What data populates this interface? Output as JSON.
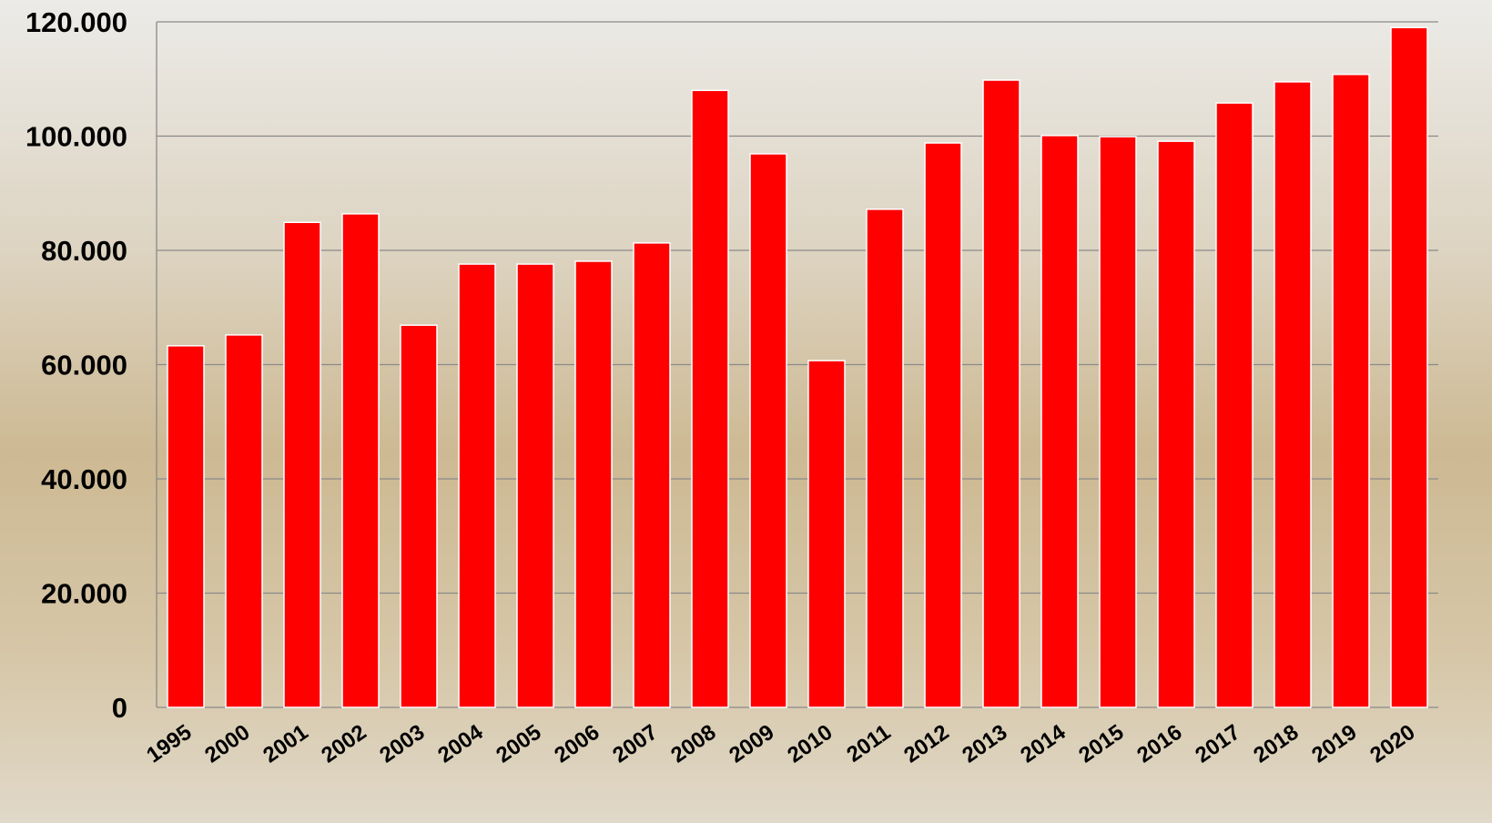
{
  "chart_data": {
    "type": "bar",
    "categories": [
      "1995",
      "2000",
      "2001",
      "2002",
      "2003",
      "2004",
      "2005",
      "2006",
      "2007",
      "2008",
      "2009",
      "2010",
      "2011",
      "2012",
      "2013",
      "2014",
      "2015",
      "2016",
      "2017",
      "2018",
      "2019",
      "2020"
    ],
    "values": [
      63300,
      65200,
      84900,
      86400,
      66900,
      77600,
      77600,
      78100,
      81300,
      108000,
      96900,
      60700,
      87200,
      98800,
      109800,
      100100,
      99900,
      99100,
      105800,
      109500,
      110800,
      119000
    ],
    "color": "#ff0000",
    "ylim": [
      0,
      120000
    ],
    "yticks": [
      0,
      {
        "value": 20000,
        "label": "20.000"
      },
      {
        "value": 40000,
        "label": "40.000"
      },
      {
        "value": 60000,
        "label": "60.000"
      },
      {
        "value": 80000,
        "label": "80.000"
      },
      {
        "value": 100000,
        "label": "100.000"
      },
      {
        "value": 120000,
        "label": "120.000"
      }
    ],
    "grid": true
  }
}
